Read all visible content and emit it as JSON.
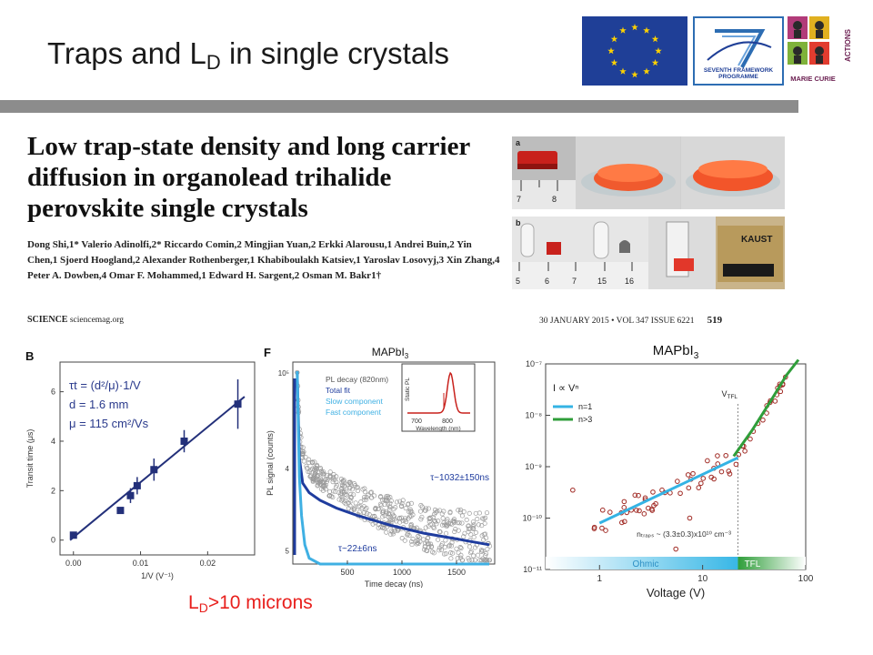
{
  "slide": {
    "title_main": "Traps and L",
    "title_sub": "D",
    "title_rest": " in single crystals",
    "conclusion_main": "L",
    "conclusion_sub": "D",
    "conclusion_rest": ">10 microns"
  },
  "logos": {
    "eu": "eu-flag-icon",
    "fp7_label_1": "SEVENTH FRAMEWORK",
    "fp7_label_2": "PROGRAMME",
    "mc_text": "MARIE CURIE",
    "mc_actions": "ACTIONS"
  },
  "paper": {
    "title": "Low trap-state density and long carrier diffusion in organolead trihalide perovskite single crystals",
    "authors": "Dong Shi,1* Valerio Adinolfi,2* Riccardo Comin,2 Mingjian Yuan,2 Erkki Alarousu,1 Andrei Buin,2 Yin Chen,1 Sjoerd Hoogland,2 Alexander Rothenberger,1 Khabiboulakh Katsiev,1 Yaroslav Losovyj,3 Xin Zhang,4 Peter A. Dowben,4 Omar F. Mohammed,1 Edward H. Sargent,2 Osman M. Bakr1†",
    "journal": "SCIENCE",
    "journal_site": "sciencemag.org",
    "issue": "30 JANUARY 2015 • VOL 347 ISSUE 6221",
    "page": "519"
  },
  "photos": {
    "a_label": "a",
    "b_label": "b",
    "a_ruler": [
      "7",
      "8"
    ],
    "b_ruler": [
      "5",
      "6",
      "7",
      "15",
      "16"
    ],
    "kaust": "KAUST"
  },
  "chart_data": [
    {
      "type": "scatter",
      "panel_label": "B",
      "xlabel": "1/V (V⁻¹)",
      "ylabel": "Transit time (μs)",
      "xticks": [
        "0.00",
        "0.01",
        "0.02"
      ],
      "yticks": [
        "0",
        "2",
        "4",
        "6"
      ],
      "xlim": [
        -0.002,
        0.027
      ],
      "ylim": [
        -0.6,
        7.2
      ],
      "annotations": [
        "τt = (d²/μ)·1/V",
        "d = 1.6 mm",
        "μ = 115 cm²/Vs"
      ],
      "points": [
        {
          "x": 0.0,
          "y": 0.2,
          "err": 0.1
        },
        {
          "x": 0.007,
          "y": 1.2,
          "err": 0.0
        },
        {
          "x": 0.0085,
          "y": 1.8,
          "err": 0.3
        },
        {
          "x": 0.0095,
          "y": 2.2,
          "err": 0.35
        },
        {
          "x": 0.012,
          "y": 2.85,
          "err": 0.45
        },
        {
          "x": 0.0165,
          "y": 4.0,
          "err": 0.45
        },
        {
          "x": 0.0245,
          "y": 5.5,
          "err": 1.0
        }
      ],
      "fit": {
        "x": [
          -0.0005,
          0.0255
        ],
        "y": [
          0.0,
          5.8
        ]
      }
    },
    {
      "type": "line",
      "panel_label": "F",
      "title": "MAPbI",
      "title_sub": "3",
      "xlabel": "Time decay (ns)",
      "ylabel": "PL signal (counts)",
      "xticks": [
        "500",
        "1000",
        "1500"
      ],
      "yticks": [
        "10⁵",
        "4",
        "5"
      ],
      "legend": [
        "PL decay (820nm)",
        "Total fit",
        "Slow component",
        "Fast component"
      ],
      "annotations": [
        "τ~1032±150ns",
        "τ~22±6ns"
      ],
      "inset": {
        "xlabel": "Wavelength (nm)",
        "ylabel": "Static PL",
        "xticks": [
          "700",
          "800"
        ]
      },
      "series": [
        {
          "name": "Total fit",
          "x": [
            40,
            60,
            90,
            150,
            250,
            400,
            600,
            900,
            1200,
            1500,
            1800
          ],
          "y": [
            1.0,
            0.55,
            0.42,
            0.37,
            0.33,
            0.29,
            0.25,
            0.2,
            0.16,
            0.13,
            0.1
          ]
        },
        {
          "name": "Fast component",
          "x": [
            40,
            60,
            80,
            110,
            150,
            250,
            1800
          ],
          "y": [
            1.0,
            0.45,
            0.25,
            0.1,
            0.03,
            0.0,
            0.0
          ]
        }
      ]
    },
    {
      "type": "scatter",
      "title": "MAPbI",
      "title_sub": "3",
      "scale": "log-log",
      "xlabel": "Voltage (V)",
      "xticks": [
        "1",
        "10",
        "100"
      ],
      "yticks": [
        "10⁻⁷",
        "10⁻⁸",
        "10⁻⁹",
        "10⁻¹⁰",
        "10⁻¹¹"
      ],
      "xlim": [
        0.3,
        100
      ],
      "ylim": [
        1e-11,
        1e-07
      ],
      "legend_title": "I ∝ Vⁿ",
      "legend": [
        "n=1",
        "n>3"
      ],
      "region_labels": [
        "Ohmic",
        "TFL"
      ],
      "vtfl_label": "V",
      "vtfl_sub": "TFL",
      "annotation": "nₜᵣₐₚₛ ~ (3.3±0.3)x10¹⁰ cm⁻³",
      "series": [
        {
          "name": "n=1",
          "x": [
            1,
            22
          ],
          "y": [
            8e-11,
            1.5e-09
          ]
        },
        {
          "name": "n>3",
          "x": [
            20,
            30,
            45,
            65,
            85
          ],
          "y": [
            1.6e-09,
            5e-09,
            1.8e-08,
            6e-08,
            1.2e-07
          ]
        }
      ]
    }
  ]
}
